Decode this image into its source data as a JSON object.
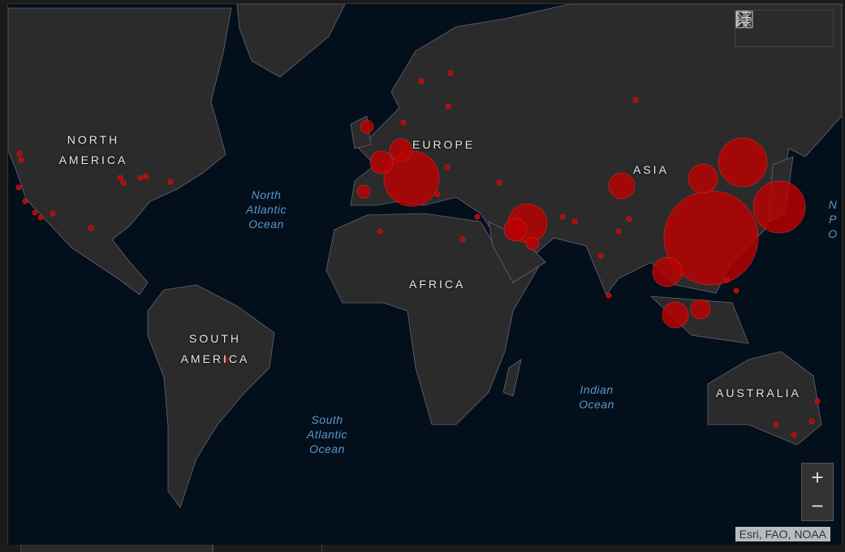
{
  "map": {
    "continents": [
      "NORTH AMERICA",
      "SOUTH AMERICA",
      "EUROPE",
      "ASIA",
      "AFRICA",
      "AUSTRALIA"
    ],
    "oceans": {
      "north_atlantic": "North Atlantic Ocean",
      "south_atlantic": "South Atlantic Ocean",
      "indian": "Indian Ocean",
      "north_pacific_partial": "N P O"
    },
    "colors": {
      "water": "#03101b",
      "land": "#2b2b2b",
      "borders": "#6a6078",
      "marker": "#c00000"
    }
  },
  "toolbar": {
    "icons": [
      "bookmark-icon",
      "legend-list-icon",
      "basemap-gallery-icon"
    ]
  },
  "zoom": {
    "in_label": "+",
    "out_label": "−"
  },
  "attribution": "Esri, FAO, NOAA"
}
